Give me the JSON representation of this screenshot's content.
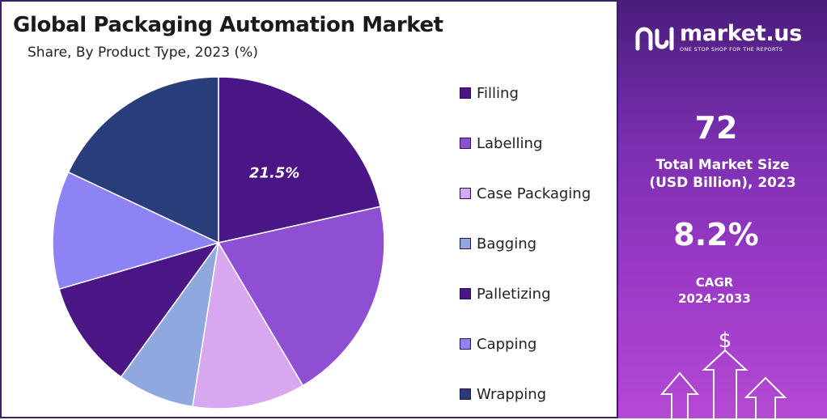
{
  "header": {
    "title": "Global Packaging Automation Market",
    "subtitle": "Share, By Product Type, 2023 (%)"
  },
  "chart_data": {
    "type": "pie",
    "title": "Global Packaging Automation Market",
    "subtitle": "Share, By Product Type, 2023 (%)",
    "categories": [
      "Filling",
      "Labelling",
      "Case Packaging",
      "Bagging",
      "Palletizing",
      "Capping",
      "Wrapping"
    ],
    "values": [
      21.5,
      20.0,
      11.0,
      7.5,
      10.5,
      11.5,
      18.0
    ],
    "colors": [
      "#4a1584",
      "#8e4fd2",
      "#d7a8f0",
      "#8fa8dd",
      "#4a1584",
      "#8e83f5",
      "#283d7a"
    ],
    "data_labels": [
      {
        "category": "Filling",
        "text": "21.5%"
      }
    ],
    "legend_position": "right"
  },
  "sidebar": {
    "brand_name": "market.us",
    "brand_tagline": "ONE STOP SHOP FOR THE REPORTS",
    "market_size_value": "72",
    "market_size_label_line1": "Total Market Size",
    "market_size_label_line2": "(USD Billion), 2023",
    "cagr_value": "8.2%",
    "cagr_label_line1": "CAGR",
    "cagr_label_line2": "2024-2033",
    "dollar_symbol": "$"
  }
}
